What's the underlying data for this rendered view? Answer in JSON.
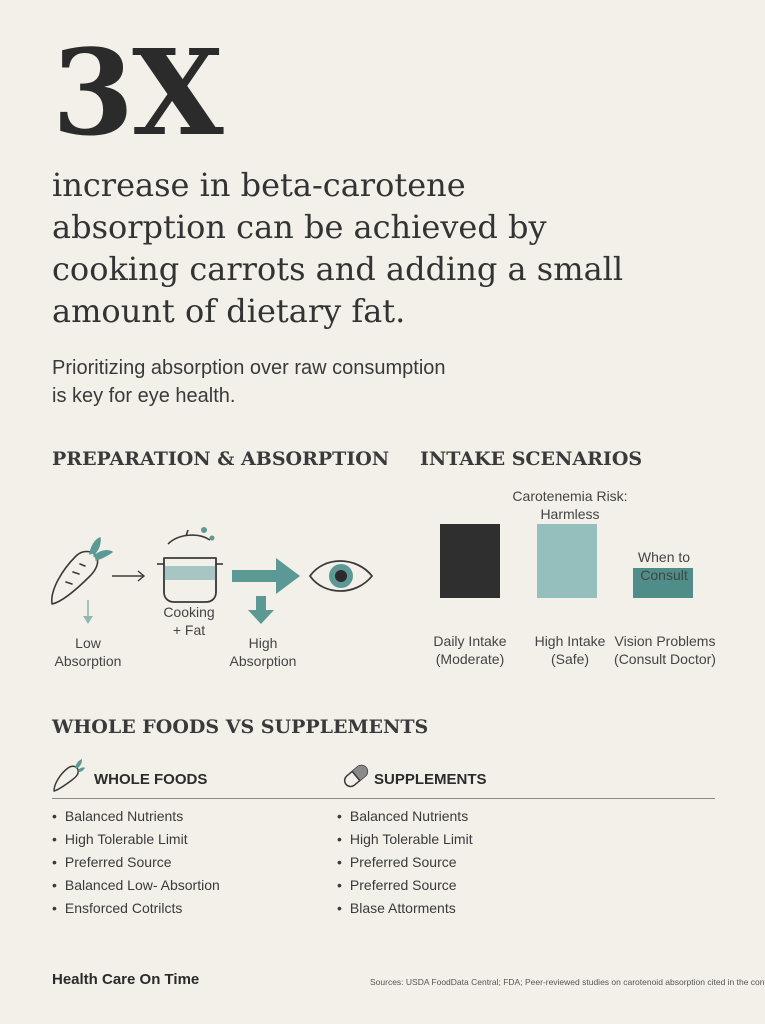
{
  "hero": {
    "number": "3X",
    "lines": [
      "increase in beta-carotene",
      "absorption can be achieved by",
      "cooking carrots and adding a small",
      "amount of dietary fat."
    ]
  },
  "subtext": {
    "lines": [
      "Prioritizing absorption over raw consumption",
      "is key for eye health."
    ]
  },
  "preparation": {
    "title": "PREPARATION & ABSORPTION",
    "low_label": [
      "Low",
      "Absorption"
    ],
    "cooking_label": [
      "Cooking",
      "+ Fat"
    ],
    "high_label": [
      "High",
      "Absorption"
    ],
    "icons": [
      "carrot-icon",
      "pot-icon",
      "eye-icon"
    ],
    "colors": {
      "teal": "#5c9894",
      "teal_light": "#8db8b6",
      "line": "#3a3a3a"
    }
  },
  "intake": {
    "title": "INTAKE SCENARIOS",
    "bars": [
      {
        "label": [
          "Daily Intake",
          "(Moderate)"
        ],
        "annotation": [],
        "color": "#2f2f2f",
        "level": 1.0
      },
      {
        "label": [
          "High Intake",
          "(Safe)"
        ],
        "annotation": [
          "Carotenemia Risk:",
          "Harmless"
        ],
        "color": "#95bfbd",
        "level": 1.0
      },
      {
        "label": [
          "Vision Problems",
          "(Consult Doctor)"
        ],
        "annotation": [
          "When to",
          "Consult"
        ],
        "color": "#4f8d89",
        "level": 0.4
      }
    ]
  },
  "comparison": {
    "title": "WHOLE FOODS VS SUPPLEMENTS",
    "whole_foods": {
      "heading": "WHOLE FOODS",
      "icon": "carrot-icon",
      "items": [
        "Balanced Nutrients",
        "High Tolerable Limit",
        "Preferred Source",
        "Balanced Low- Absortion",
        "Ensforced Cotrilcts"
      ]
    },
    "supplements": {
      "heading": "SUPPLEMENTS",
      "icon": "capsule-icon",
      "items": [
        "Balanced Nutrients",
        "High Tolerable Limit",
        "Preferred Source",
        "Preferred Source",
        "Blase Attorments"
      ]
    }
  },
  "footer": {
    "brand": "Health Care On Time",
    "sources": "Sources: USDA FoodData Central; FDA; Peer-reviewed studies on carotenoid absorption cited in the content."
  }
}
